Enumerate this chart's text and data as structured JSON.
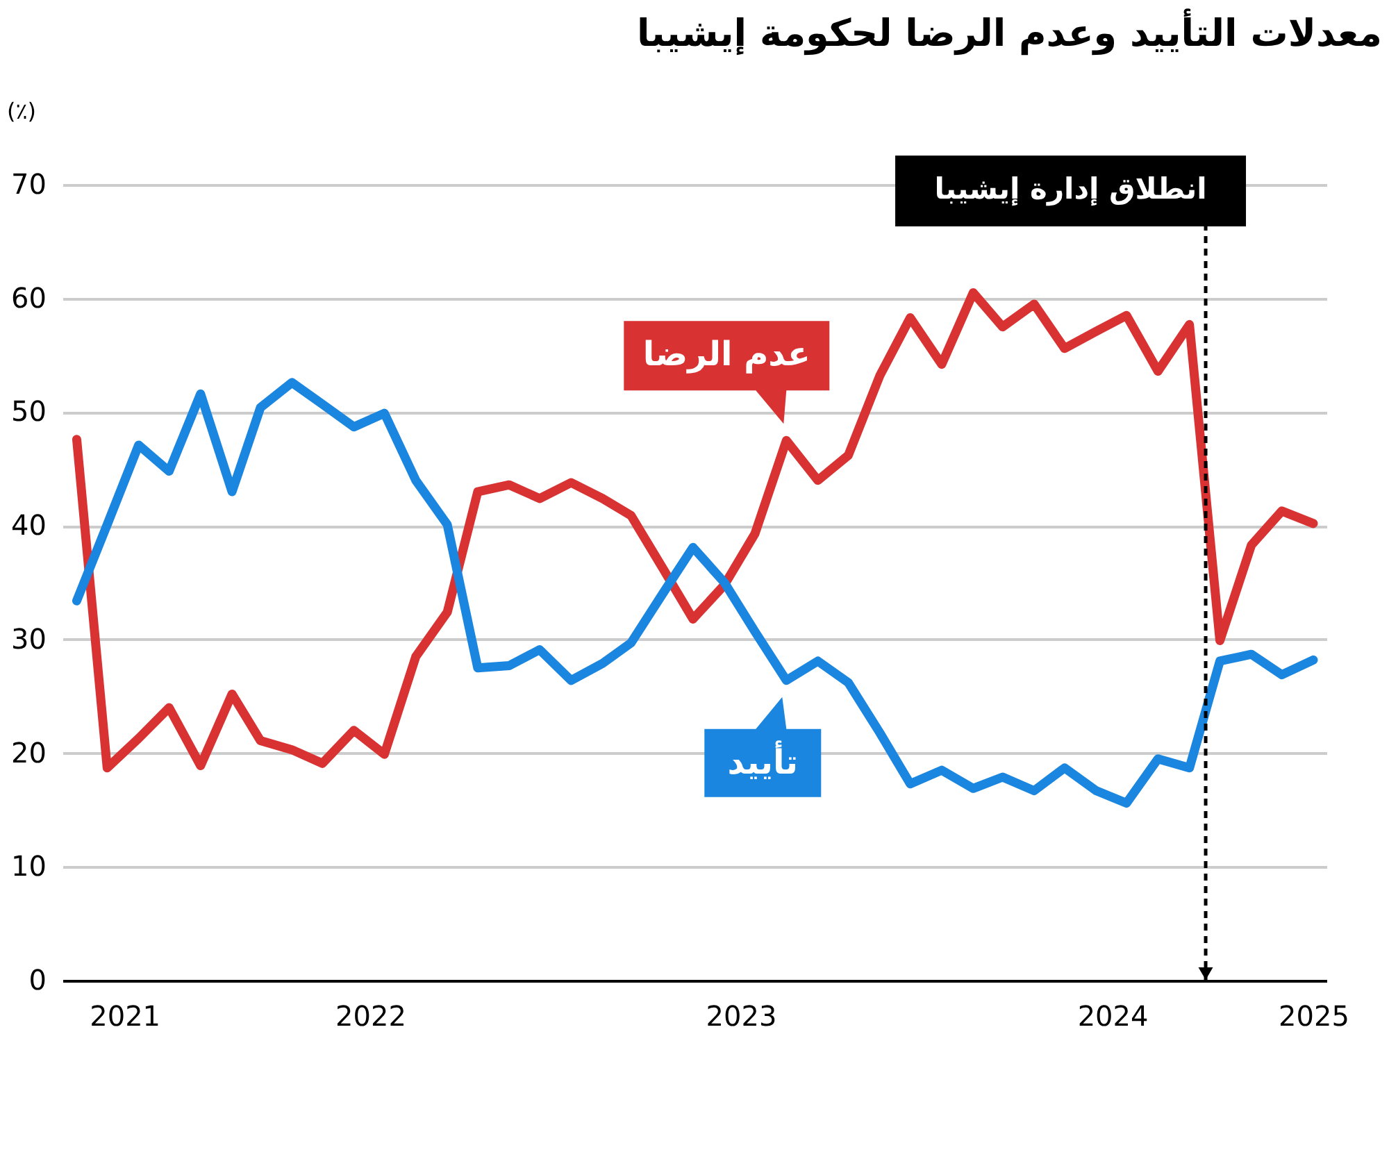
{
  "chart_data": {
    "type": "line",
    "title": "معدلات التأييد وعدم الرضا لحكومة إيشيبا",
    "ylabel": "(٪)",
    "x": [
      "2021-09-15",
      "2021-10-15",
      "2021-11-15",
      "2021-12-15",
      "2022-01-15",
      "2022-02-15",
      "2022-03-15",
      "2022-04-15",
      "2022-05-15",
      "2022-06-15",
      "2022-07-15",
      "2022-08-15",
      "2022-09-15",
      "2022-10-15",
      "2022-11-15",
      "2022-12-15",
      "2023-01-15",
      "2023-02-15",
      "2023-03-15",
      "2023-04-15",
      "2023-05-15",
      "2023-06-15",
      "2023-07-15",
      "2023-08-15",
      "2023-09-15",
      "2023-10-15",
      "2023-11-15",
      "2023-12-15",
      "2024-01-15",
      "2024-02-15",
      "2024-03-15",
      "2024-04-15",
      "2024-05-15",
      "2024-06-15",
      "2024-07-15",
      "2024-08-15",
      "2024-09-15",
      "2024-10-15",
      "2024-11-15",
      "2024-12-15",
      "2025-01-15"
    ],
    "series": [
      {
        "name": "عدم الرضا",
        "color": "#d93232",
        "values": [
          47.6,
          18.7,
          21.3,
          24.0,
          18.9,
          25.2,
          21.1,
          20.3,
          19.1,
          22.0,
          19.9,
          28.5,
          32.4,
          43.0,
          43.6,
          42.4,
          43.8,
          42.4,
          40.9,
          36.3,
          31.8,
          34.8,
          39.3,
          47.5,
          44.0,
          46.2,
          53.2,
          58.3,
          54.2,
          60.5,
          57.5,
          59.5,
          55.6,
          57.1,
          58.5,
          53.6,
          57.7,
          29.9,
          38.3,
          41.3,
          40.2
        ]
      },
      {
        "name": "تأييد",
        "color": "#1a86e0",
        "values": [
          33.4,
          40.1,
          47.1,
          44.8,
          51.6,
          43.0,
          50.4,
          52.6,
          50.7,
          48.7,
          49.9,
          44.0,
          40.1,
          27.5,
          27.7,
          29.1,
          26.4,
          27.9,
          29.7,
          34.0,
          38.1,
          35.0,
          30.7,
          26.4,
          28.1,
          26.2,
          21.8,
          17.3,
          18.5,
          16.9,
          17.9,
          16.7,
          18.7,
          16.7,
          15.6,
          19.5,
          18.7,
          28.1,
          28.7,
          26.9,
          28.2
        ]
      }
    ],
    "xlim": [
      "2021-09-01",
      "2025-01-28"
    ],
    "xticks": [
      {
        "value": "2021-11-01",
        "label": "2021"
      },
      {
        "value": "2022-07-01",
        "label": "2022"
      },
      {
        "value": "2023-07-01",
        "label": "2023"
      },
      {
        "value": "2024-07-01",
        "label": "2024"
      },
      {
        "value": "2025-01-15",
        "label": "2025"
      }
    ],
    "ylim": [
      0,
      70
    ],
    "yticks": [
      0,
      10,
      20,
      30,
      40,
      50,
      60,
      70
    ],
    "grid": "y",
    "ref_lines": [
      {
        "axis": "x",
        "value": "2024-10-01",
        "label": "انطلاق إدارة إيشيبا",
        "color": "#000000",
        "line_style": "dashed"
      }
    ]
  }
}
